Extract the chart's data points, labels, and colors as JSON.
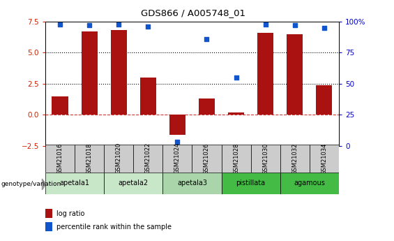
{
  "title": "GDS866 / A005748_01",
  "samples": [
    "GSM21016",
    "GSM21018",
    "GSM21020",
    "GSM21022",
    "GSM21024",
    "GSM21026",
    "GSM21028",
    "GSM21030",
    "GSM21032",
    "GSM21034"
  ],
  "log_ratio": [
    1.5,
    6.7,
    6.8,
    3.0,
    -1.6,
    1.3,
    0.2,
    6.6,
    6.5,
    2.4
  ],
  "percentile_rank": [
    98,
    97,
    98,
    96,
    3,
    86,
    55,
    98,
    97,
    95
  ],
  "ylim_left": [
    -2.5,
    7.5
  ],
  "ylim_right": [
    0,
    100
  ],
  "yticks_left": [
    -2.5,
    0.0,
    2.5,
    5.0,
    7.5
  ],
  "yticks_right": [
    0,
    25,
    50,
    75,
    100
  ],
  "ytick_right_labels": [
    "0",
    "25",
    "50",
    "75",
    "100%"
  ],
  "hlines": [
    2.5,
    5.0
  ],
  "bar_color": "#aa1111",
  "dot_color": "#1155cc",
  "zero_line_color": "#cc3333",
  "groups": [
    {
      "label": "apetala1",
      "start": 0,
      "end": 2,
      "color": "#c8e6c8"
    },
    {
      "label": "apetala2",
      "start": 2,
      "end": 4,
      "color": "#c8e6c8"
    },
    {
      "label": "apetala3",
      "start": 4,
      "end": 6,
      "color": "#aad4aa"
    },
    {
      "label": "pistillata",
      "start": 6,
      "end": 8,
      "color": "#44bb44"
    },
    {
      "label": "agamous",
      "start": 8,
      "end": 10,
      "color": "#44bb44"
    }
  ],
  "genotype_label": "genotype/variation",
  "legend_bar_label": "log ratio",
  "legend_dot_label": "percentile rank within the sample",
  "bar_width": 0.55,
  "left_color": "#cc2200",
  "right_color": "#0000cc"
}
